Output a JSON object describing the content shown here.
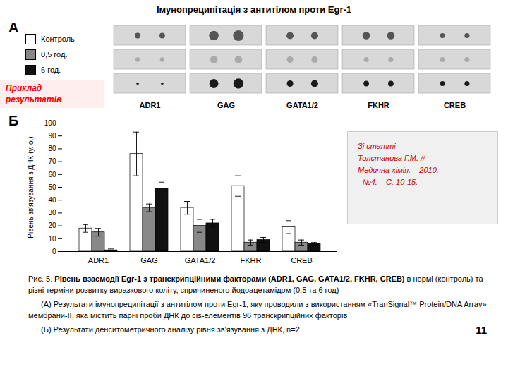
{
  "chart_data": [
    {
      "type": "dot_blot",
      "title": "Імунопреципітація з антитілом проти Egr-1",
      "subtitle": "А",
      "categories": [
        "ADR1",
        "GAG",
        "GATA1/2",
        "FKHR",
        "CREB"
      ],
      "series": [
        {
          "name": "Контроль",
          "color": "#555555",
          "sizes": [
            [
              30,
              30
            ],
            [
              90,
              110
            ],
            [
              50,
              50
            ],
            [
              55,
              55
            ],
            [
              25,
              25
            ]
          ]
        },
        {
          "name": "0,5 год.",
          "color": "#aaaaaa",
          "sizes": [
            [
              20,
              20
            ],
            [
              55,
              55
            ],
            [
              40,
              40
            ],
            [
              25,
              25
            ],
            [
              25,
              25
            ]
          ]
        },
        {
          "name": "6 год.",
          "color": "#1a1a1a",
          "sizes": [
            [
              6,
              6
            ],
            [
              80,
              100
            ],
            [
              40,
              50
            ],
            [
              30,
              30
            ],
            [
              25,
              25
            ]
          ]
        }
      ],
      "annotations": [
        {
          "text": "Приклад\nрезультатів",
          "color": "red"
        }
      ]
    },
    {
      "type": "bar",
      "subtitle": "Б",
      "categories": [
        "ADR1",
        "GAG",
        "GATA1/2",
        "FKHR",
        "CREB"
      ],
      "series": [
        {
          "name": "Контроль",
          "color": "white",
          "values": [
            18,
            76,
            34,
            51,
            19
          ],
          "errors": [
            3,
            17,
            5,
            8,
            5
          ]
        },
        {
          "name": "0,5 год.",
          "color": "#888888",
          "values": [
            15,
            34,
            20,
            7,
            7
          ],
          "errors": [
            3,
            3,
            5,
            2,
            2
          ]
        },
        {
          "name": "6 год.",
          "color": "#111111",
          "values": [
            1,
            49,
            22,
            9,
            6
          ],
          "errors": [
            1,
            5,
            3,
            2,
            1
          ]
        }
      ],
      "ylabel": "Рівень зв'язування з ДНК (у. о.)",
      "ylim": [
        0,
        100
      ],
      "yticks": [
        0,
        10,
        20,
        30,
        40,
        50,
        60,
        70,
        80,
        90,
        100
      ],
      "legend": "upper left",
      "annotations": [
        {
          "text": "Зі статті\nТолстанова Г.М. //\nМедична хімія. – 2010.\n- №4. – С. 10-15.",
          "color": "#cc0000"
        },
        {
          "text": "Рис. 5."
        },
        {
          "text": "Рівень взаємодії Egr-1 з транскрипційними факторами (ADR1, GAG, GATA1/2, FKHR, CREB)"
        },
        {
          "text": "в нормі (контроль) та різні терміни розвитку виразкового коліту, спричиненого йодоацетамідом (0,5 та 6 год)"
        },
        {
          "text": "(А) Результати імунопреципітації з антитілом проти Egr-1, яку проводили з використанням «TranSignal™ Protein/DNA Array» мембрани-II, яка містить парні проби ДНК до cis-елементів 96 транскрипційних факторів"
        },
        {
          "text": "(Б) Результати денситометричного аналізу рівня зв'язування з ДНК, n=2"
        },
        {
          "text": "11"
        }
      ]
    }
  ]
}
